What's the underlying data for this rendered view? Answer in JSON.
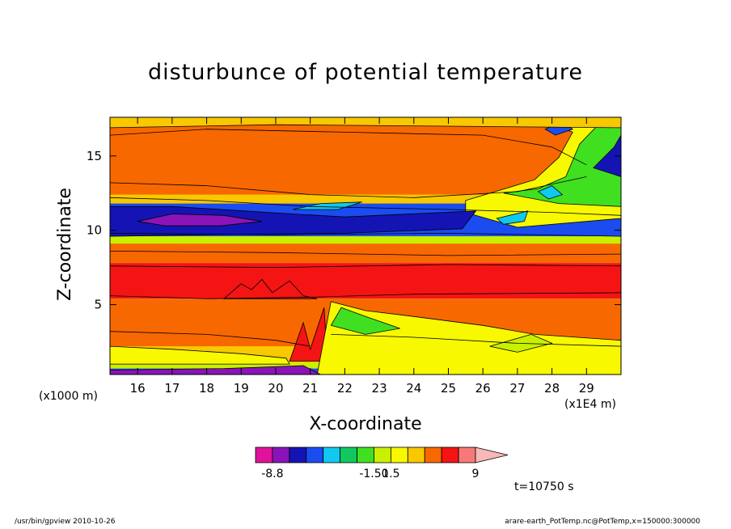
{
  "chart_data": {
    "type": "heatmap",
    "title": "disturbunce of potential temperature",
    "xlabel": "X-coordinate",
    "ylabel": "Z-coordinate",
    "x_unit_label": "(x1000 m)",
    "x_scale_label": "(x1E4 m)",
    "xlim": [
      15.2,
      30.0
    ],
    "ylim": [
      0.3,
      17.6
    ],
    "x_ticks": [
      16,
      17,
      18,
      19,
      20,
      21,
      22,
      23,
      24,
      25,
      26,
      27,
      28,
      29
    ],
    "y_ticks": [
      5,
      10,
      15
    ],
    "colorbar": {
      "labels": [
        "-8.8",
        "-1.50",
        "1.5",
        "9"
      ],
      "colors": [
        "#e0129c",
        "#8a14b8",
        "#1414b4",
        "#1a4cf0",
        "#10c8f0",
        "#10c860",
        "#40e020",
        "#c8f000",
        "#f8f800",
        "#f8c800",
        "#f86800",
        "#f41414",
        "#f87878",
        "#f8b8b8"
      ]
    },
    "bands": [
      {
        "z": [
          0.3,
          0.8
        ],
        "level": "-1.5"
      },
      {
        "z": [
          0.8,
          2.0
        ],
        "level": "1.5 to 3"
      },
      {
        "z": [
          2.0,
          5.2
        ],
        "level": "3 to 4.5"
      },
      {
        "z": [
          5.2,
          7.8
        ],
        "level": "4.5 to 6"
      },
      {
        "z": [
          7.8,
          9.2
        ],
        "level": "3 to 4.5"
      },
      {
        "z": [
          9.2,
          12.0
        ],
        "level": "-3 to -1.5"
      },
      {
        "z": [
          12.0,
          17.6
        ],
        "level": "3 to 4.5"
      }
    ]
  },
  "annotations": {
    "time": "t=10750 s",
    "footer_left": "/usr/bin/gpview   2010-10-26",
    "footer_right": "arare-earth_PotTemp.nc@PotTemp,x=150000:300000"
  }
}
